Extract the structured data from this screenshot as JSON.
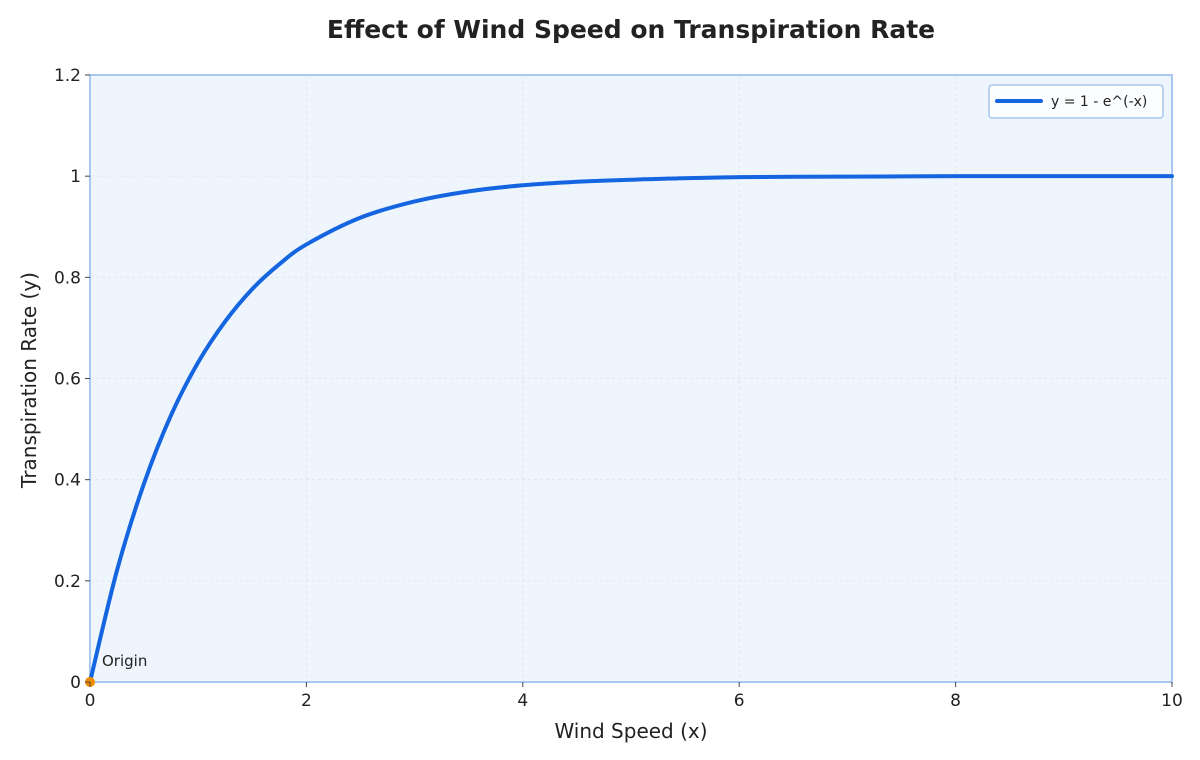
{
  "chart_data": {
    "type": "line",
    "title": "Effect of Wind Speed on Transpiration Rate",
    "xlabel": "Wind Speed (x)",
    "ylabel": "Transpiration Rate (y)",
    "xlim": [
      0,
      10
    ],
    "ylim": [
      0,
      1.2
    ],
    "xticks": [
      0,
      2,
      4,
      6,
      8,
      10
    ],
    "xtick_labels": [
      "0",
      "2",
      "4",
      "6",
      "8",
      "10"
    ],
    "yticks": [
      0,
      0.2,
      0.4,
      0.6,
      0.8,
      1,
      1.2
    ],
    "ytick_labels": [
      "0",
      "0.2",
      "0.4",
      "0.6",
      "0.8",
      "1",
      "1.2"
    ],
    "grid": true,
    "legend_position": "top-right",
    "series": [
      {
        "name": "y = 1 - e^(-x)",
        "color": "#1565e0",
        "x": [
          0,
          0.25,
          0.5,
          0.75,
          1,
          1.25,
          1.5,
          1.75,
          2,
          2.5,
          3,
          3.5,
          4,
          4.5,
          5,
          6,
          7,
          8,
          9,
          10
        ],
        "y": [
          0,
          0.221,
          0.393,
          0.528,
          0.632,
          0.713,
          0.777,
          0.826,
          0.865,
          0.918,
          0.95,
          0.97,
          0.982,
          0.989,
          0.993,
          0.998,
          0.999,
          1.0,
          1.0,
          1.0
        ]
      }
    ],
    "annotations": [
      {
        "text": "Origin",
        "x": 0,
        "y": 0,
        "marker_color": "#f08c00"
      }
    ],
    "colors": {
      "plot_background": "#eef5fd",
      "plot_border": "#a8c8f0"
    }
  }
}
